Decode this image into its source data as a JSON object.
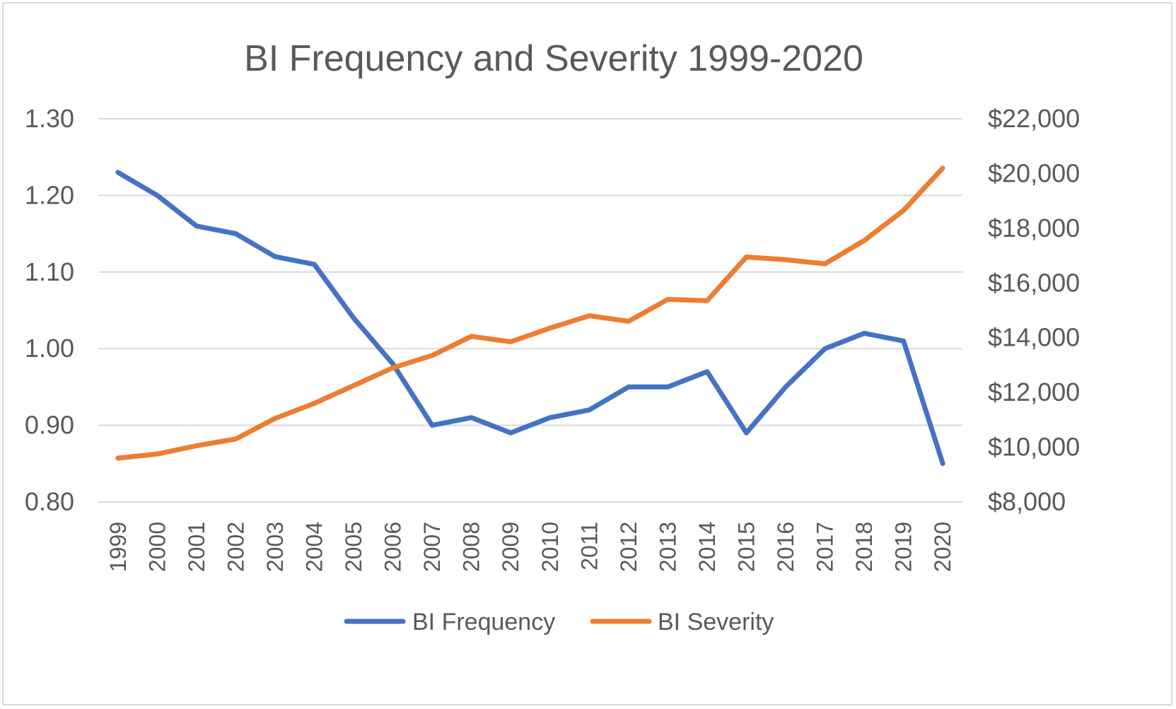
{
  "chart_data": {
    "type": "line",
    "title": "BI Frequency and Severity 1999-2020",
    "x": [
      "1999",
      "2000",
      "2001",
      "2002",
      "2003",
      "2004",
      "2005",
      "2006",
      "2007",
      "2008",
      "2009",
      "2010",
      "2011",
      "2012",
      "2013",
      "2014",
      "2015",
      "2016",
      "2017",
      "2018",
      "2019",
      "2020"
    ],
    "series": [
      {
        "name": "BI Frequency",
        "axis": "left",
        "color": "#4472C4",
        "values": [
          1.23,
          1.2,
          1.16,
          1.15,
          1.12,
          1.11,
          1.04,
          0.98,
          0.9,
          0.91,
          0.89,
          0.91,
          0.92,
          0.95,
          0.95,
          0.97,
          0.89,
          0.95,
          1.0,
          1.02,
          1.01,
          0.85
        ]
      },
      {
        "name": "BI Severity",
        "axis": "right",
        "color": "#ED7D31",
        "values": [
          9600,
          9750,
          10050,
          10300,
          11050,
          11600,
          12250,
          12900,
          13350,
          14050,
          13850,
          14350,
          14800,
          14600,
          15400,
          15350,
          16950,
          16850,
          16700,
          17550,
          18650,
          20200
        ]
      }
    ],
    "y_left": {
      "min": 0.8,
      "max": 1.3,
      "ticks": [
        0.8,
        0.9,
        1.0,
        1.1,
        1.2,
        1.3
      ],
      "tick_labels": [
        "0.80",
        "0.90",
        "1.00",
        "1.10",
        "1.20",
        "1.30"
      ]
    },
    "y_right": {
      "min": 8000,
      "max": 22000,
      "ticks": [
        8000,
        10000,
        12000,
        14000,
        16000,
        18000,
        20000,
        22000
      ],
      "tick_labels": [
        "$8,000",
        "$10,000",
        "$12,000",
        "$14,000",
        "$16,000",
        "$18,000",
        "$20,000",
        "$22,000"
      ]
    },
    "grid": true,
    "legend": "bottom",
    "xlabel": "",
    "ylabel": ""
  }
}
